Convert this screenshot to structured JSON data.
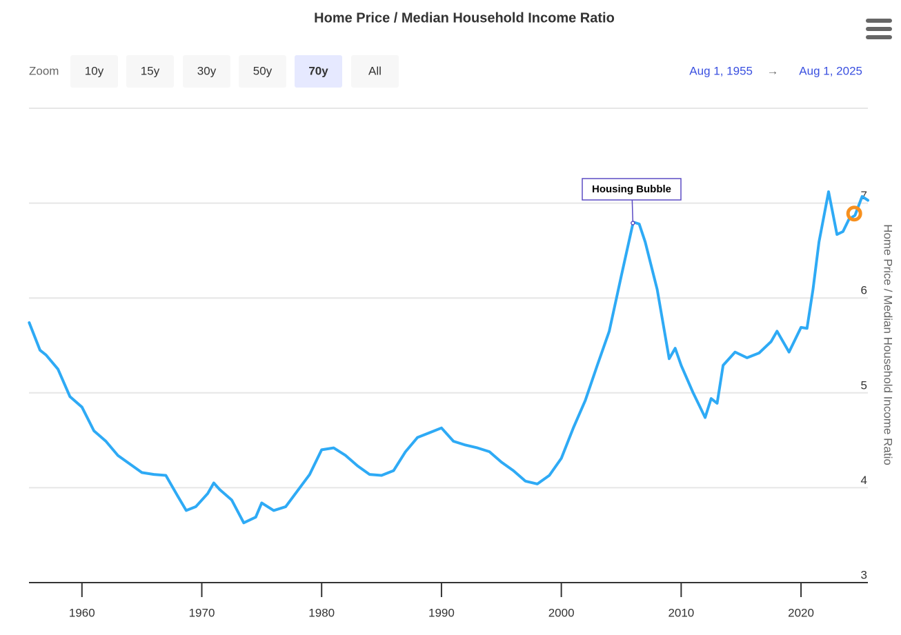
{
  "zoom": {
    "label": "Zoom",
    "buttons": [
      "10y",
      "15y",
      "30y",
      "50y",
      "70y",
      "All"
    ],
    "selected": 4
  },
  "range": {
    "from": "Aug 1, 1955",
    "separator": "→",
    "to": "Aug 1, 2025"
  },
  "chart_data": {
    "type": "line",
    "title": "Home Price / Median Household Income Ratio",
    "y_axis_label": "Home Price / Median Household Income Ratio",
    "xlim": [
      1955.58,
      2025.58
    ],
    "xticks": [
      1960,
      1970,
      1980,
      1990,
      2000,
      2010,
      2020
    ],
    "ylim": [
      3,
      8
    ],
    "yticks": [
      3,
      4,
      5,
      6,
      7
    ],
    "grid": true,
    "series": [
      {
        "name": "Home Price / Median Household Income Ratio",
        "color": "#2eaaf5",
        "x": [
          1955.6,
          1956.5,
          1957,
          1958,
          1959,
          1960,
          1961,
          1962,
          1963,
          1964,
          1965,
          1966,
          1967,
          1968,
          1968.7,
          1969.5,
          1970.5,
          1971,
          1971.5,
          1972.5,
          1973.5,
          1974.5,
          1975,
          1976,
          1977,
          1978,
          1979,
          1980,
          1981,
          1981.5,
          1982,
          1983,
          1984,
          1985,
          1986,
          1987,
          1988,
          1989,
          1990,
          1991,
          1992,
          1993,
          1994,
          1995,
          1996,
          1997,
          1998,
          1999,
          2000,
          2001,
          2002,
          2003,
          2004,
          2005,
          2006,
          2006.5,
          2007,
          2008,
          2009,
          2009.5,
          2010,
          2011,
          2012,
          2012.5,
          2013,
          2013.5,
          2014.5,
          2015.5,
          2016.5,
          2017.5,
          2018,
          2019,
          2020,
          2020.5,
          2021,
          2021.5,
          2022.3,
          2023,
          2023.5,
          2024,
          2024.5,
          2025.1,
          2025.58
        ],
        "values": [
          5.74,
          5.45,
          5.4,
          5.25,
          4.96,
          4.85,
          4.6,
          4.49,
          4.34,
          4.25,
          4.16,
          4.14,
          4.13,
          3.91,
          3.76,
          3.8,
          3.94,
          4.05,
          3.98,
          3.87,
          3.63,
          3.69,
          3.84,
          3.76,
          3.8,
          3.97,
          4.14,
          4.4,
          4.42,
          4.38,
          4.34,
          4.23,
          4.14,
          4.13,
          4.18,
          4.38,
          4.53,
          4.58,
          4.63,
          4.49,
          4.45,
          4.42,
          4.38,
          4.27,
          4.18,
          4.07,
          4.04,
          4.13,
          4.31,
          4.63,
          4.92,
          5.29,
          5.65,
          6.23,
          6.8,
          6.78,
          6.59,
          6.09,
          5.36,
          5.47,
          5.29,
          5.0,
          4.74,
          4.94,
          4.89,
          5.29,
          5.43,
          5.37,
          5.42,
          5.54,
          5.65,
          5.43,
          5.69,
          5.68,
          6.09,
          6.59,
          7.12,
          6.67,
          6.7,
          6.83,
          6.87,
          7.07,
          7.03
        ]
      }
    ],
    "highlight": {
      "x": 2024.44,
      "y": 6.89,
      "color": "#f7901e"
    },
    "annotation": {
      "text": "Housing Bubble",
      "x": 2005.97,
      "y": 6.79,
      "color": "#5b4bc4"
    }
  }
}
